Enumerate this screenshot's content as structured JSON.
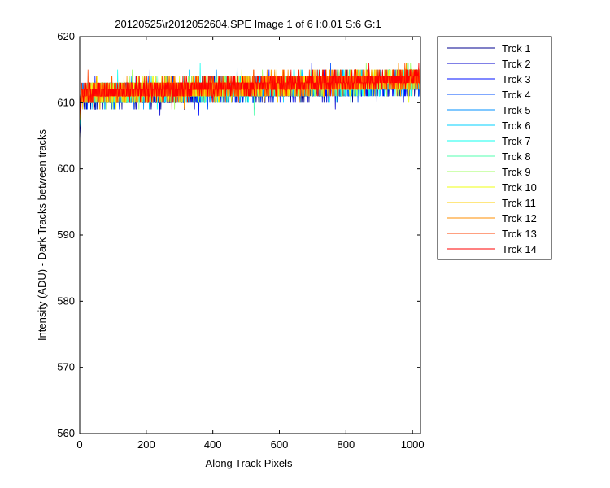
{
  "chart_data": {
    "type": "line",
    "title": "20120525\\r2012052604.SPE  Image 1 of 6  I:0.01  S:6  G:1",
    "xlabel": "Along Track Pixels",
    "ylabel": "Intensity (ADU) - Dark Tracks between tracks",
    "xlim": [
      0,
      1024
    ],
    "ylim": [
      560,
      620
    ],
    "xticks": [
      0,
      200,
      400,
      600,
      800,
      1000
    ],
    "yticks": [
      560,
      570,
      580,
      590,
      600,
      610,
      620
    ],
    "grid": false,
    "legend_position": "outside-right",
    "n_points": 1024,
    "series": [
      {
        "name": "Trck 1",
        "color": "#00008f",
        "start": 604,
        "base_start": 610.6,
        "base_end": 612.9,
        "spread": 1.7
      },
      {
        "name": "Trck 2",
        "color": "#0000cf",
        "start": 605,
        "base_start": 610.8,
        "base_end": 613.0,
        "spread": 1.7
      },
      {
        "name": "Trck 3",
        "color": "#0010ff",
        "start": 605,
        "base_start": 611.0,
        "base_end": 613.1,
        "spread": 1.6
      },
      {
        "name": "Trck 4",
        "color": "#0050ff",
        "start": 606,
        "base_start": 611.0,
        "base_end": 613.2,
        "spread": 1.6
      },
      {
        "name": "Trck 5",
        "color": "#0090ff",
        "start": 606,
        "base_start": 611.1,
        "base_end": 613.2,
        "spread": 1.6
      },
      {
        "name": "Trck 6",
        "color": "#00d0ff",
        "start": 606,
        "base_start": 611.1,
        "base_end": 613.3,
        "spread": 1.6
      },
      {
        "name": "Trck 7",
        "color": "#10ffef",
        "start": 606,
        "base_start": 611.2,
        "base_end": 613.3,
        "spread": 1.6
      },
      {
        "name": "Trck 8",
        "color": "#50ffaf",
        "start": 607,
        "base_start": 611.2,
        "base_end": 613.4,
        "spread": 1.6
      },
      {
        "name": "Trck 9",
        "color": "#9fff60",
        "start": 607,
        "base_start": 611.3,
        "base_end": 613.4,
        "spread": 1.7
      },
      {
        "name": "Trck 10",
        "color": "#efff10",
        "start": 607,
        "base_start": 611.3,
        "base_end": 613.5,
        "spread": 1.7
      },
      {
        "name": "Trck 11",
        "color": "#ffcf00",
        "start": 607,
        "base_start": 611.4,
        "base_end": 613.5,
        "spread": 1.6
      },
      {
        "name": "Trck 12",
        "color": "#ff8f00",
        "start": 607,
        "base_start": 611.4,
        "base_end": 613.6,
        "spread": 1.6
      },
      {
        "name": "Trck 13",
        "color": "#ff4000",
        "start": 608,
        "base_start": 611.5,
        "base_end": 613.6,
        "spread": 1.5
      },
      {
        "name": "Trck 14",
        "color": "#ff0000",
        "start": 608,
        "base_start": 611.5,
        "base_end": 613.7,
        "spread": 1.5
      }
    ]
  }
}
